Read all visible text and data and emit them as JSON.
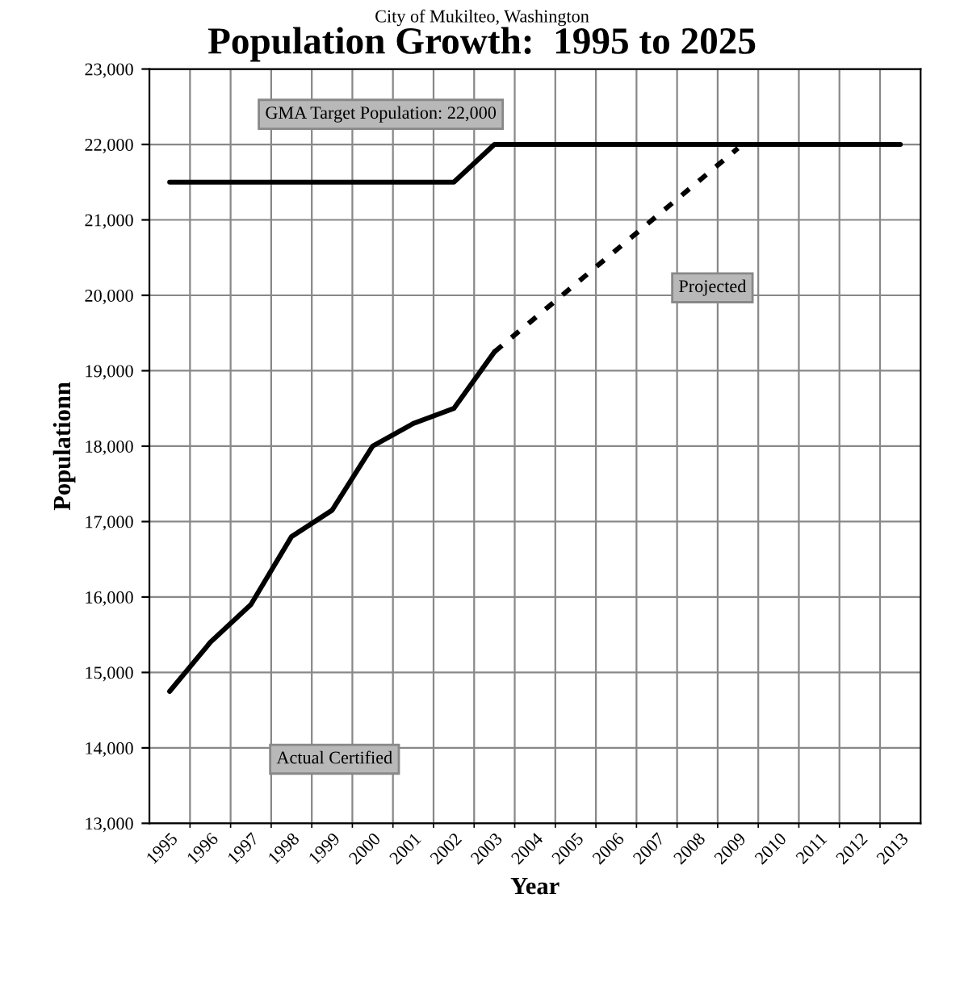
{
  "chart_data": {
    "type": "line",
    "subtitle": "City of Mukilteo, Washington",
    "title": "Population Growth:  1995 to 2025",
    "xlabel": "Year",
    "ylabel": "Populationn",
    "categories": [
      "1995",
      "1996",
      "1997",
      "1998",
      "1999",
      "2000",
      "2001",
      "2002",
      "2003",
      "2004",
      "2005",
      "2006",
      "2007",
      "2008",
      "2009",
      "2010",
      "2011",
      "2012",
      "2013"
    ],
    "series": [
      {
        "color": "#000000",
        "line_style": "solid",
        "values": [
          21500,
          21500,
          21500,
          21500,
          21500,
          21500,
          21500,
          21500,
          22000,
          22000,
          22000,
          22000,
          22000,
          22000,
          22000,
          22000,
          22000,
          22000,
          22000
        ]
      },
      {
        "color": "#000000",
        "line_style": "solid",
        "values": [
          14750,
          15400,
          15900,
          16800,
          17150,
          18000,
          18300,
          18500,
          19250,
          null,
          null,
          null,
          null,
          null,
          null,
          null,
          null,
          null,
          null
        ]
      },
      {
        "color": "#000000",
        "line_style": "dashed",
        "values": [
          null,
          null,
          null,
          null,
          null,
          null,
          null,
          null,
          19250,
          19700,
          20150,
          20600,
          21050,
          21500,
          21950,
          null,
          null,
          null,
          null
        ]
      }
    ],
    "ylim": [
      13000,
      23000
    ],
    "yticks": [
      {
        "value": 13000,
        "label": "13,000"
      },
      {
        "value": 14000,
        "label": "14,000"
      },
      {
        "value": 15000,
        "label": "15,000"
      },
      {
        "value": 16000,
        "label": "16,000"
      },
      {
        "value": 17000,
        "label": "17,000"
      },
      {
        "value": 18000,
        "label": "18,000"
      },
      {
        "value": 19000,
        "label": "19,000"
      },
      {
        "value": 20000,
        "label": "20,000"
      },
      {
        "value": 21000,
        "label": "21,000"
      },
      {
        "value": 22000,
        "label": "22,000"
      },
      {
        "value": 23000,
        "label": "23,000"
      }
    ],
    "annotations": [
      "GMA Target Population: 22,000",
      "Actual Certified",
      "Projected"
    ],
    "grid": true,
    "marker": "none"
  }
}
